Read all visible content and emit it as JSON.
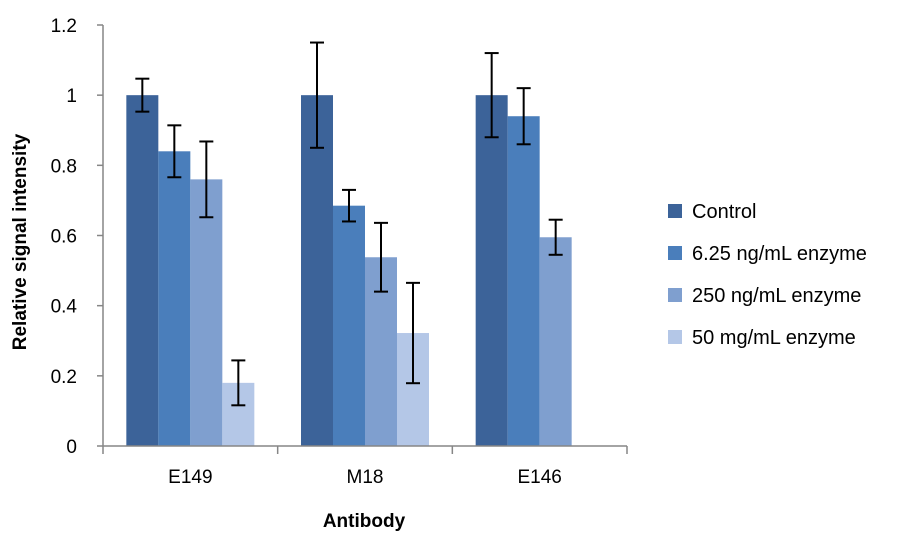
{
  "chart_data": {
    "type": "bar",
    "categories": [
      "E149",
      "M18",
      "E146"
    ],
    "series": [
      {
        "name": "Control",
        "color": "#3C6399",
        "values": [
          1.0,
          1.0,
          1.0
        ],
        "errors": [
          0.047,
          0.15,
          0.12
        ]
      },
      {
        "name": "6.25 ng/mL enzyme",
        "color": "#4A7EBB",
        "values": [
          0.84,
          0.685,
          0.94
        ],
        "errors": [
          0.074,
          0.045,
          0.08
        ]
      },
      {
        "name": "250 ng/mL enzyme",
        "color": "#7F9FCF",
        "values": [
          0.76,
          0.538,
          0.595
        ],
        "errors": [
          0.108,
          0.098,
          0.05
        ]
      },
      {
        "name": "50 mg/mL enzyme",
        "color": "#B4C7E7",
        "values": [
          0.18,
          0.322,
          null
        ],
        "errors": [
          0.064,
          0.143,
          null
        ]
      }
    ],
    "xlabel": "Antibody",
    "ylabel": "Relative signal intensity",
    "ylim": [
      0,
      1.2
    ],
    "yticks": [
      "0",
      "0.2",
      "0.4",
      "0.6",
      "0.8",
      "1",
      "1.2"
    ],
    "ytick_values": [
      0,
      0.2,
      0.4,
      0.6,
      0.8,
      1.0,
      1.2
    ],
    "grid": false,
    "legend_position": "right"
  }
}
